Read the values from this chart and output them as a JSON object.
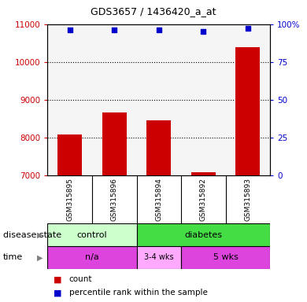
{
  "title": "GDS3657 / 1436420_a_at",
  "samples": [
    "GSM315895",
    "GSM315896",
    "GSM315894",
    "GSM315892",
    "GSM315893"
  ],
  "counts": [
    8070,
    8670,
    8450,
    7080,
    10400
  ],
  "percentile_ranks": [
    96,
    96,
    96,
    95,
    97
  ],
  "ylim_left": [
    7000,
    11000
  ],
  "ylim_right": [
    0,
    100
  ],
  "yticks_left": [
    7000,
    8000,
    9000,
    10000,
    11000
  ],
  "yticks_right": [
    0,
    25,
    50,
    75,
    100
  ],
  "ytick_labels_right": [
    "0",
    "25",
    "50",
    "75",
    "100%"
  ],
  "bar_color": "#cc0000",
  "dot_color": "#0000cc",
  "disease_colors": {
    "control": "#ccffcc",
    "diabetes": "#44dd44"
  },
  "time_color_bright": "#dd44dd",
  "time_color_light": "#ffaaff",
  "label_row1": "disease state",
  "label_row2": "time",
  "legend_count": "count",
  "legend_pct": "percentile rank within the sample",
  "plot_bg": "#f5f5f5"
}
